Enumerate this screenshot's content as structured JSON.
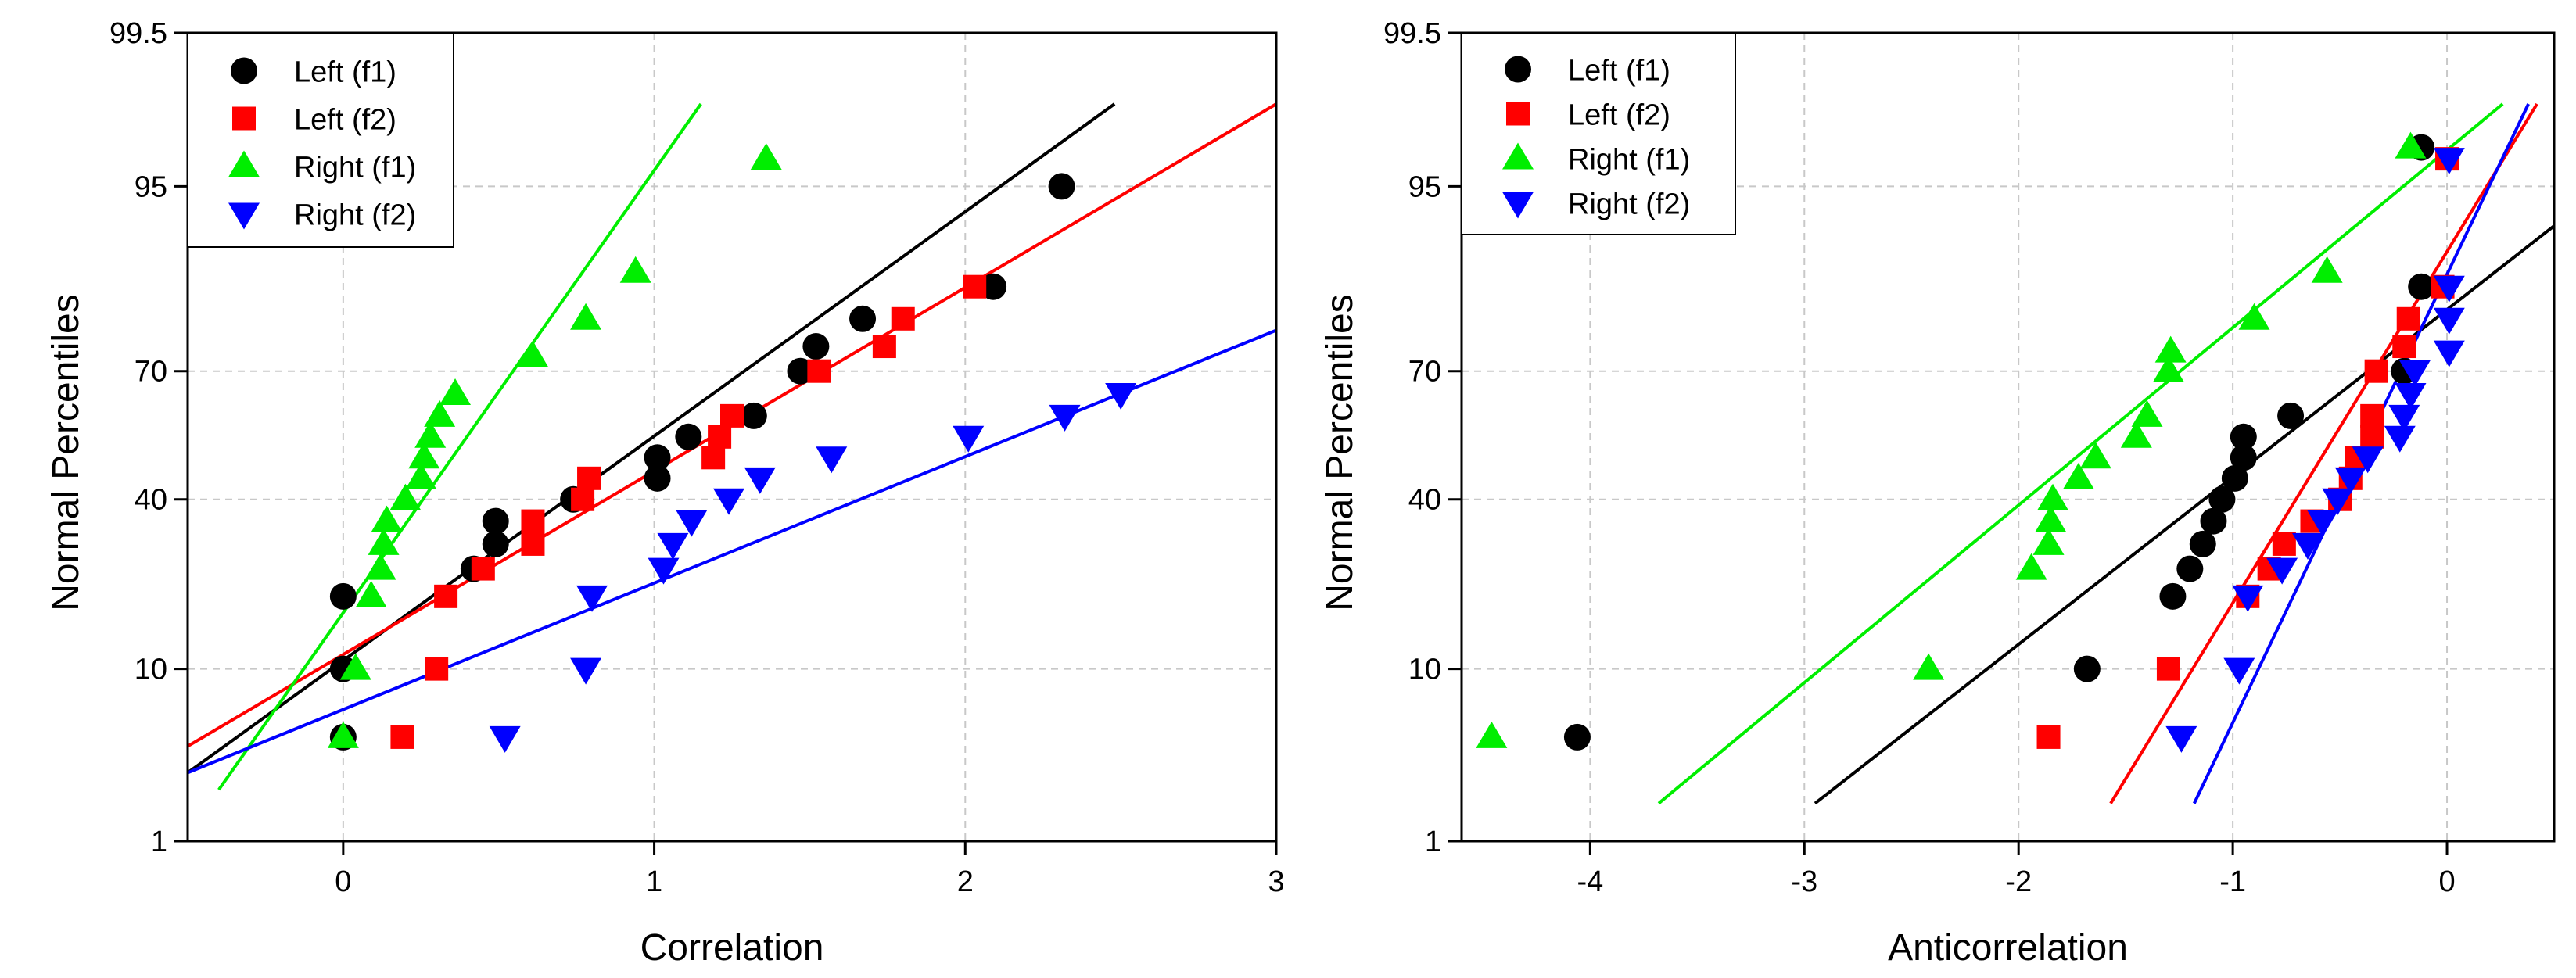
{
  "chart_data": [
    {
      "type": "scatter",
      "xlabel": "Correlation",
      "ylabel": "Normal Percentiles",
      "xlim": [
        -0.5,
        3
      ],
      "ylim": [
        1,
        99.5
      ],
      "xticks": [
        0,
        1,
        2,
        3
      ],
      "xtick_labels": [
        "0",
        "1",
        "2",
        "3"
      ],
      "yticks": [
        1,
        10,
        40,
        70,
        95,
        99.5
      ],
      "ytick_labels": [
        "1",
        "10",
        "40",
        "70",
        "95",
        "99.5"
      ],
      "grid": true,
      "legend_position": "top-left",
      "series": [
        {
          "name": "Left (f1)",
          "color": "#000000",
          "marker": "circle",
          "points": [
            [
              0,
              4.5
            ],
            [
              0,
              10
            ],
            [
              0,
              20
            ],
            [
              0.42,
              25
            ],
            [
              0.49,
              30
            ],
            [
              0.49,
              35
            ],
            [
              0.74,
              40
            ],
            [
              1.01,
              45
            ],
            [
              1.01,
              50
            ],
            [
              1.11,
              55
            ],
            [
              1.32,
              60
            ],
            [
              1.47,
              70
            ],
            [
              1.52,
              75
            ],
            [
              1.67,
              80
            ],
            [
              2.09,
              85
            ],
            [
              2.31,
              95
            ]
          ],
          "fit_line": [
            [
              -0.5,
              2.8
            ],
            [
              2.48,
              98.4
            ]
          ]
        },
        {
          "name": "Left (f2)",
          "color": "#ff0000",
          "marker": "square",
          "points": [
            [
              0.19,
              4.5
            ],
            [
              0.3,
              10
            ],
            [
              0.33,
              20
            ],
            [
              0.45,
              25
            ],
            [
              0.61,
              30
            ],
            [
              0.61,
              35
            ],
            [
              0.77,
              40
            ],
            [
              0.79,
              45
            ],
            [
              1.19,
              50
            ],
            [
              1.21,
              55
            ],
            [
              1.25,
              60
            ],
            [
              1.53,
              70
            ],
            [
              1.74,
              75
            ],
            [
              1.8,
              80
            ],
            [
              2.03,
              85
            ]
          ],
          "fit_line": [
            [
              -0.5,
              4
            ],
            [
              3,
              98.4
            ]
          ]
        },
        {
          "name": "Right (f1)",
          "color": "#00ee00",
          "marker": "triangle-up",
          "points": [
            [
              0,
              4.5
            ],
            [
              0.04,
              10
            ],
            [
              0.09,
              20
            ],
            [
              0.12,
              25
            ],
            [
              0.13,
              30
            ],
            [
              0.14,
              35
            ],
            [
              0.2,
              40
            ],
            [
              0.25,
              45
            ],
            [
              0.26,
              50
            ],
            [
              0.28,
              55
            ],
            [
              0.31,
              60
            ],
            [
              0.36,
              65
            ],
            [
              0.61,
              73
            ],
            [
              0.78,
              80
            ],
            [
              0.94,
              87
            ],
            [
              1.36,
              96.5
            ]
          ],
          "fit_line": [
            [
              -0.4,
              2.2
            ],
            [
              1.15,
              98.4
            ]
          ]
        },
        {
          "name": "Right (f2)",
          "color": "#0000ff",
          "marker": "triangle-down",
          "points": [
            [
              0.52,
              4.5
            ],
            [
              0.78,
              10
            ],
            [
              0.8,
              20
            ],
            [
              1.03,
              25
            ],
            [
              1.06,
              30
            ],
            [
              1.12,
              35
            ],
            [
              1.24,
              40
            ],
            [
              1.34,
              45
            ],
            [
              1.57,
              50
            ],
            [
              2.01,
              55
            ],
            [
              2.32,
              60
            ],
            [
              2.5,
              65
            ]
          ],
          "fit_line": [
            [
              -0.5,
              2.8
            ],
            [
              3,
              78
            ]
          ]
        }
      ]
    },
    {
      "type": "scatter",
      "xlabel": "Anticorrelation",
      "ylabel": "Normal Percentiles",
      "xlim": [
        -4.6,
        0.5
      ],
      "ylim": [
        1,
        99.5
      ],
      "xticks": [
        -4,
        -3,
        -2,
        -1,
        0
      ],
      "xtick_labels": [
        "-4",
        "-3",
        "-2",
        "-1",
        "0"
      ],
      "yticks": [
        1,
        10,
        40,
        70,
        95,
        99.5
      ],
      "ytick_labels": [
        "1",
        "10",
        "40",
        "70",
        "95",
        "99.5"
      ],
      "grid": true,
      "legend_position": "top-left",
      "series": [
        {
          "name": "Left (f1)",
          "color": "#000000",
          "marker": "circle",
          "points": [
            [
              -4.06,
              4.5
            ],
            [
              -1.68,
              10
            ],
            [
              -1.28,
              20
            ],
            [
              -1.2,
              25
            ],
            [
              -1.14,
              30
            ],
            [
              -1.09,
              35
            ],
            [
              -1.05,
              40
            ],
            [
              -0.99,
              45
            ],
            [
              -0.95,
              50
            ],
            [
              -0.95,
              55
            ],
            [
              -0.73,
              60
            ],
            [
              -0.2,
              70
            ],
            [
              -0.12,
              85
            ],
            [
              -0.12,
              97
            ]
          ],
          "fit_line": [
            [
              -2.95,
              1.8
            ],
            [
              0.5,
              92
            ]
          ]
        },
        {
          "name": "Left (f2)",
          "color": "#ff0000",
          "marker": "square",
          "points": [
            [
              -1.86,
              4.5
            ],
            [
              -1.3,
              10
            ],
            [
              -0.93,
              20
            ],
            [
              -0.83,
              25
            ],
            [
              -0.76,
              30
            ],
            [
              -0.63,
              35
            ],
            [
              -0.5,
              40
            ],
            [
              -0.45,
              45
            ],
            [
              -0.42,
              50
            ],
            [
              -0.35,
              55
            ],
            [
              -0.35,
              60
            ],
            [
              -0.33,
              70
            ],
            [
              -0.2,
              75
            ],
            [
              -0.18,
              80
            ],
            [
              -0.02,
              85
            ],
            [
              0,
              96.5
            ]
          ],
          "fit_line": [
            [
              -1.57,
              1.8
            ],
            [
              0.42,
              98.4
            ]
          ]
        },
        {
          "name": "Right (f1)",
          "color": "#00ee00",
          "marker": "triangle-up",
          "points": [
            [
              -4.46,
              4.5
            ],
            [
              -2.42,
              10
            ],
            [
              -1.94,
              25
            ],
            [
              -1.86,
              30
            ],
            [
              -1.85,
              35
            ],
            [
              -1.84,
              40
            ],
            [
              -1.64,
              50
            ],
            [
              -1.72,
              45
            ],
            [
              -1.45,
              55
            ],
            [
              -1.4,
              60
            ],
            [
              -1.3,
              70
            ],
            [
              -1.29,
              74
            ],
            [
              -0.9,
              80
            ],
            [
              -0.56,
              87
            ],
            [
              -0.17,
              97
            ]
          ],
          "fit_line": [
            [
              -3.68,
              1.8
            ],
            [
              0.26,
              98.4
            ]
          ]
        },
        {
          "name": "Right (f2)",
          "color": "#0000ff",
          "marker": "triangle-down",
          "points": [
            [
              -1.24,
              4.5
            ],
            [
              -0.97,
              10
            ],
            [
              -0.93,
              20
            ],
            [
              -0.77,
              25
            ],
            [
              -0.65,
              30
            ],
            [
              -0.58,
              35
            ],
            [
              -0.51,
              40
            ],
            [
              -0.45,
              45
            ],
            [
              -0.37,
              50
            ],
            [
              -0.22,
              55
            ],
            [
              -0.2,
              60
            ],
            [
              -0.17,
              65
            ],
            [
              -0.15,
              70
            ],
            [
              0.01,
              74
            ],
            [
              0.01,
              80
            ],
            [
              0.01,
              85
            ],
            [
              0.01,
              96.5
            ]
          ],
          "fit_line": [
            [
              -1.18,
              1.8
            ],
            [
              0.38,
              98.4
            ]
          ]
        }
      ]
    }
  ]
}
